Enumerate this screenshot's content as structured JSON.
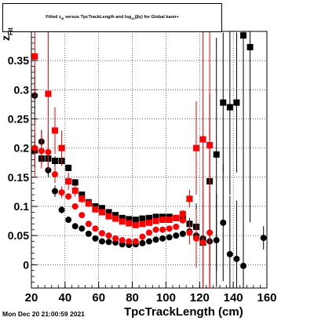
{
  "chart_data": {
    "type": "scatter",
    "title": "Fitted  z_{f6}  versus TpcTrackLength and log_{10}(βγ) for Global kaon+",
    "title_display": "Fitted  z",
    "title_sub": "f6",
    "title_rest": "  versus TpcTrackLength and log",
    "title_sub2": "10",
    "title_rest2": "(βγ) for Global kaon+",
    "xlabel": "TpcTrackLength (cm)",
    "ylabel": "z",
    "ylabel_sub": "Fit",
    "xlim": [
      20,
      160
    ],
    "ylim": [
      -0.04,
      0.4
    ],
    "xticks": [
      20,
      40,
      60,
      80,
      100,
      120,
      140,
      160
    ],
    "yticks": [
      0,
      0.05,
      0.1,
      0.15,
      0.2,
      0.25,
      0.3,
      0.35
    ],
    "ytick_labels": [
      "0",
      "0.05",
      "0.1",
      "0.15",
      "0.2",
      "0.25",
      "0.3",
      "0.35"
    ],
    "grid": true,
    "timestamp": "Mon Dec 20 21:00:59 2021",
    "colors": {
      "black": "#000000",
      "red": "#ff0000"
    },
    "series": [
      {
        "marker": "square",
        "color": "#000000",
        "points": [
          {
            "x": 22,
            "y": 0.196,
            "e": 0.03
          },
          {
            "x": 26,
            "y": 0.182,
            "e": 0.01
          },
          {
            "x": 30,
            "y": 0.182,
            "e": 0.01
          },
          {
            "x": 34,
            "y": 0.178,
            "e": 0.008
          },
          {
            "x": 38,
            "y": 0.178,
            "e": 0.008
          },
          {
            "x": 42,
            "y": 0.166,
            "e": 0.006
          },
          {
            "x": 46,
            "y": 0.141,
            "e": 0.006
          },
          {
            "x": 50,
            "y": 0.12,
            "e": 0.005
          },
          {
            "x": 54,
            "y": 0.107,
            "e": 0.005
          },
          {
            "x": 58,
            "y": 0.1,
            "e": 0.004
          },
          {
            "x": 62,
            "y": 0.097,
            "e": 0.004
          },
          {
            "x": 66,
            "y": 0.09,
            "e": 0.004
          },
          {
            "x": 70,
            "y": 0.085,
            "e": 0.004
          },
          {
            "x": 74,
            "y": 0.08,
            "e": 0.004
          },
          {
            "x": 78,
            "y": 0.078,
            "e": 0.004
          },
          {
            "x": 82,
            "y": 0.077,
            "e": 0.004
          },
          {
            "x": 86,
            "y": 0.079,
            "e": 0.004
          },
          {
            "x": 90,
            "y": 0.08,
            "e": 0.004
          },
          {
            "x": 94,
            "y": 0.082,
            "e": 0.004
          },
          {
            "x": 98,
            "y": 0.082,
            "e": 0.004
          },
          {
            "x": 102,
            "y": 0.082,
            "e": 0.004
          },
          {
            "x": 106,
            "y": 0.08,
            "e": 0.005
          },
          {
            "x": 110,
            "y": 0.08,
            "e": 0.006
          },
          {
            "x": 114,
            "y": 0.07,
            "e": 0.01
          },
          {
            "x": 118,
            "y": 0.065,
            "e": 0.04
          },
          {
            "x": 122,
            "y": 0.038,
            "e": 0.09
          },
          {
            "x": 126,
            "y": 0.143,
            "e": 0.15
          },
          {
            "x": 130,
            "y": 0.189,
            "e": 0.2
          },
          {
            "x": 134,
            "y": 0.278,
            "e": 0.12
          },
          {
            "x": 138,
            "y": 0.27,
            "e": 0.15
          },
          {
            "x": 142,
            "y": 0.278,
            "e": 0.12
          },
          {
            "x": 146,
            "y": 0.393,
            "e": 0.3
          },
          {
            "x": 150,
            "y": 0.373,
            "e": 0.3
          }
        ]
      },
      {
        "marker": "circle",
        "color": "#000000",
        "points": [
          {
            "x": 22,
            "y": 0.29,
            "e": 0.05
          },
          {
            "x": 26,
            "y": 0.211,
            "e": 0.02
          },
          {
            "x": 30,
            "y": 0.162,
            "e": 0.012
          },
          {
            "x": 34,
            "y": 0.126,
            "e": 0.01
          },
          {
            "x": 38,
            "y": 0.094,
            "e": 0.006
          },
          {
            "x": 42,
            "y": 0.077,
            "e": 0.005
          },
          {
            "x": 46,
            "y": 0.066,
            "e": 0.004
          },
          {
            "x": 50,
            "y": 0.062,
            "e": 0.004
          },
          {
            "x": 54,
            "y": 0.053,
            "e": 0.003
          },
          {
            "x": 58,
            "y": 0.045,
            "e": 0.003
          },
          {
            "x": 62,
            "y": 0.04,
            "e": 0.003
          },
          {
            "x": 66,
            "y": 0.039,
            "e": 0.003
          },
          {
            "x": 70,
            "y": 0.038,
            "e": 0.003
          },
          {
            "x": 74,
            "y": 0.035,
            "e": 0.003
          },
          {
            "x": 78,
            "y": 0.034,
            "e": 0.003
          },
          {
            "x": 82,
            "y": 0.035,
            "e": 0.003
          },
          {
            "x": 86,
            "y": 0.037,
            "e": 0.003
          },
          {
            "x": 90,
            "y": 0.04,
            "e": 0.003
          },
          {
            "x": 94,
            "y": 0.043,
            "e": 0.003
          },
          {
            "x": 98,
            "y": 0.045,
            "e": 0.003
          },
          {
            "x": 102,
            "y": 0.047,
            "e": 0.003
          },
          {
            "x": 106,
            "y": 0.05,
            "e": 0.004
          },
          {
            "x": 110,
            "y": 0.053,
            "e": 0.005
          },
          {
            "x": 114,
            "y": 0.057,
            "e": 0.008
          },
          {
            "x": 118,
            "y": 0.05,
            "e": 0.03
          },
          {
            "x": 122,
            "y": 0.045,
            "e": 0.06
          },
          {
            "x": 126,
            "y": 0.04,
            "e": 0.08
          },
          {
            "x": 130,
            "y": 0.042,
            "e": 0.08
          },
          {
            "x": 134,
            "y": 0.072,
            "e": 0.1
          },
          {
            "x": 138,
            "y": 0.018,
            "e": 0.1
          },
          {
            "x": 142,
            "y": 0.01,
            "e": 0.1
          },
          {
            "x": 146,
            "y": -0.002,
            "e": 0.15
          },
          {
            "x": 158,
            "y": 0.046,
            "e": 0.02
          }
        ]
      },
      {
        "marker": "square",
        "color": "#ff0000",
        "points": [
          {
            "x": 22,
            "y": 0.357,
            "e": 0.07
          },
          {
            "x": 30,
            "y": 0.293,
            "e": 0.12
          },
          {
            "x": 34,
            "y": 0.23,
            "e": 0.04
          },
          {
            "x": 38,
            "y": 0.2,
            "e": 0.03
          },
          {
            "x": 42,
            "y": 0.143,
            "e": 0.015
          },
          {
            "x": 46,
            "y": 0.127,
            "e": 0.01
          },
          {
            "x": 50,
            "y": 0.113,
            "e": 0.008
          },
          {
            "x": 54,
            "y": 0.105,
            "e": 0.006
          },
          {
            "x": 58,
            "y": 0.095,
            "e": 0.005
          },
          {
            "x": 62,
            "y": 0.09,
            "e": 0.005
          },
          {
            "x": 66,
            "y": 0.083,
            "e": 0.004
          },
          {
            "x": 70,
            "y": 0.079,
            "e": 0.004
          },
          {
            "x": 74,
            "y": 0.074,
            "e": 0.004
          },
          {
            "x": 78,
            "y": 0.071,
            "e": 0.004
          },
          {
            "x": 82,
            "y": 0.068,
            "e": 0.004
          },
          {
            "x": 86,
            "y": 0.07,
            "e": 0.004
          },
          {
            "x": 90,
            "y": 0.072,
            "e": 0.004
          },
          {
            "x": 94,
            "y": 0.075,
            "e": 0.004
          },
          {
            "x": 98,
            "y": 0.077,
            "e": 0.004
          },
          {
            "x": 102,
            "y": 0.077,
            "e": 0.004
          },
          {
            "x": 106,
            "y": 0.08,
            "e": 0.005
          },
          {
            "x": 110,
            "y": 0.087,
            "e": 0.007
          },
          {
            "x": 114,
            "y": 0.113,
            "e": 0.015
          },
          {
            "x": 118,
            "y": 0.2,
            "e": 0.08
          },
          {
            "x": 122,
            "y": 0.215,
            "e": 0.3
          },
          {
            "x": 126,
            "y": 0.205,
            "e": 0.3
          }
        ]
      },
      {
        "marker": "circle",
        "color": "#ff0000",
        "points": [
          {
            "x": 22,
            "y": 0.2,
            "e": 0.05
          },
          {
            "x": 26,
            "y": 0.195,
            "e": 0.03
          },
          {
            "x": 30,
            "y": 0.193,
            "e": 0.03
          },
          {
            "x": 34,
            "y": 0.155,
            "e": 0.015
          },
          {
            "x": 38,
            "y": 0.124,
            "e": 0.01
          },
          {
            "x": 42,
            "y": 0.117,
            "e": 0.006
          },
          {
            "x": 46,
            "y": 0.1,
            "e": 0.005
          },
          {
            "x": 50,
            "y": 0.085,
            "e": 0.004
          },
          {
            "x": 54,
            "y": 0.07,
            "e": 0.004
          },
          {
            "x": 58,
            "y": 0.062,
            "e": 0.004
          },
          {
            "x": 62,
            "y": 0.054,
            "e": 0.004
          },
          {
            "x": 66,
            "y": 0.05,
            "e": 0.003
          },
          {
            "x": 70,
            "y": 0.045,
            "e": 0.003
          },
          {
            "x": 74,
            "y": 0.042,
            "e": 0.003
          },
          {
            "x": 78,
            "y": 0.04,
            "e": 0.003
          },
          {
            "x": 82,
            "y": 0.04,
            "e": 0.003
          },
          {
            "x": 86,
            "y": 0.048,
            "e": 0.003
          },
          {
            "x": 90,
            "y": 0.055,
            "e": 0.003
          },
          {
            "x": 94,
            "y": 0.06,
            "e": 0.003
          },
          {
            "x": 98,
            "y": 0.06,
            "e": 0.003
          },
          {
            "x": 102,
            "y": 0.062,
            "e": 0.003
          },
          {
            "x": 106,
            "y": 0.065,
            "e": 0.004
          },
          {
            "x": 110,
            "y": 0.076,
            "e": 0.005
          },
          {
            "x": 114,
            "y": 0.055,
            "e": 0.02
          },
          {
            "x": 118,
            "y": 0.045,
            "e": 0.05
          },
          {
            "x": 122,
            "y": 0.038,
            "e": 0.1
          },
          {
            "x": 126,
            "y": 0.055,
            "e": 0.18
          }
        ]
      }
    ]
  }
}
